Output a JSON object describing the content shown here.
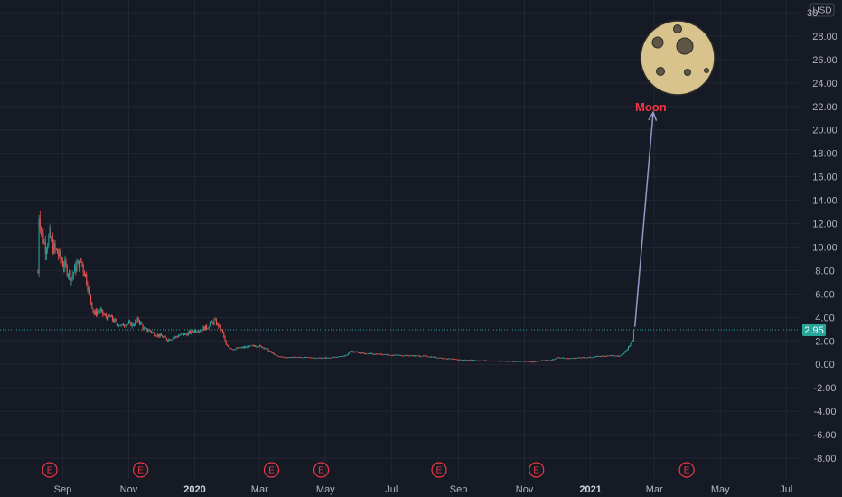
{
  "chart_data": {
    "type": "candlestick",
    "currency": "USD",
    "y_axis": {
      "ticks": [
        "30.00",
        "28.00",
        "26.00",
        "24.00",
        "22.00",
        "20.00",
        "18.00",
        "16.00",
        "14.00",
        "12.00",
        "10.00",
        "8.00",
        "6.00",
        "4.00",
        "2.00",
        "0.00",
        "-2.00",
        "-4.00",
        "-6.00",
        "-8.00"
      ],
      "range": [
        -9,
        30.5
      ]
    },
    "x_axis": {
      "ticks": [
        {
          "label": "Sep",
          "date": "2019-09-01",
          "bold": false
        },
        {
          "label": "Nov",
          "date": "2019-11-01",
          "bold": false
        },
        {
          "label": "2020",
          "date": "2020-01-01",
          "bold": true
        },
        {
          "label": "Mar",
          "date": "2020-03-01",
          "bold": false
        },
        {
          "label": "May",
          "date": "2020-05-01",
          "bold": false
        },
        {
          "label": "Jul",
          "date": "2020-07-01",
          "bold": false
        },
        {
          "label": "Sep",
          "date": "2020-09-01",
          "bold": false
        },
        {
          "label": "Nov",
          "date": "2020-11-01",
          "bold": false
        },
        {
          "label": "2021",
          "date": "2021-01-01",
          "bold": true
        },
        {
          "label": "Mar",
          "date": "2021-03-01",
          "bold": false
        },
        {
          "label": "May",
          "date": "2021-05-01",
          "bold": false
        },
        {
          "label": "Jul",
          "date": "2021-07-01",
          "bold": false
        }
      ],
      "range": [
        "2019-07-05",
        "2021-07-15"
      ]
    },
    "last_price": 2.95,
    "last_price_label": "2.95",
    "earnings_label": "E",
    "earnings_dates": [
      "2019-08-20",
      "2019-11-12",
      "2020-03-12",
      "2020-04-27",
      "2020-08-14",
      "2020-11-12",
      "2021-03-31"
    ],
    "annotation": {
      "label": "Moon",
      "arrow_from": {
        "date": "2021-02-11",
        "value": 3.2
      },
      "arrow_to": {
        "date": "2021-02-28",
        "value": 21.5
      }
    },
    "price_path": [
      [
        "2019-08-09",
        7.8
      ],
      [
        "2019-08-10",
        12.8
      ],
      [
        "2019-08-13",
        11.0
      ],
      [
        "2019-08-16",
        10.0
      ],
      [
        "2019-08-20",
        11.0
      ],
      [
        "2019-08-23",
        10.0
      ],
      [
        "2019-08-27",
        9.5
      ],
      [
        "2019-08-30",
        9.0
      ],
      [
        "2019-09-04",
        8.2
      ],
      [
        "2019-09-09",
        7.4
      ],
      [
        "2019-09-13",
        8.3
      ],
      [
        "2019-09-18",
        8.8
      ],
      [
        "2019-09-22",
        7.6
      ],
      [
        "2019-09-26",
        5.8
      ],
      [
        "2019-09-30",
        4.3
      ],
      [
        "2019-10-05",
        4.6
      ],
      [
        "2019-10-10",
        4.1
      ],
      [
        "2019-10-15",
        4.0
      ],
      [
        "2019-10-20",
        3.6
      ],
      [
        "2019-10-25",
        3.3
      ],
      [
        "2019-10-30",
        3.5
      ],
      [
        "2019-11-05",
        3.4
      ],
      [
        "2019-11-10",
        3.8
      ],
      [
        "2019-11-15",
        3.0
      ],
      [
        "2019-11-20",
        2.9
      ],
      [
        "2019-11-25",
        2.6
      ],
      [
        "2019-12-01",
        2.4
      ],
      [
        "2019-12-07",
        2.1
      ],
      [
        "2019-12-13",
        2.3
      ],
      [
        "2019-12-19",
        2.5
      ],
      [
        "2019-12-25",
        2.6
      ],
      [
        "2020-01-01",
        2.9
      ],
      [
        "2020-01-07",
        3.0
      ],
      [
        "2020-01-13",
        3.2
      ],
      [
        "2020-01-19",
        3.7
      ],
      [
        "2020-01-23",
        3.3
      ],
      [
        "2020-01-27",
        2.7
      ],
      [
        "2020-01-30",
        1.6
      ],
      [
        "2020-02-05",
        1.3
      ],
      [
        "2020-02-12",
        1.4
      ],
      [
        "2020-02-20",
        1.5
      ],
      [
        "2020-02-28",
        1.6
      ],
      [
        "2020-03-06",
        1.4
      ],
      [
        "2020-03-12",
        1.0
      ],
      [
        "2020-03-17",
        0.7
      ],
      [
        "2020-03-24",
        0.6
      ],
      [
        "2020-04-01",
        0.6
      ],
      [
        "2020-04-10",
        0.6
      ],
      [
        "2020-04-20",
        0.55
      ],
      [
        "2020-05-01",
        0.55
      ],
      [
        "2020-05-10",
        0.6
      ],
      [
        "2020-05-20",
        0.75
      ],
      [
        "2020-05-24",
        1.1
      ],
      [
        "2020-06-01",
        1.0
      ],
      [
        "2020-06-10",
        0.9
      ],
      [
        "2020-06-20",
        0.85
      ],
      [
        "2020-07-01",
        0.8
      ],
      [
        "2020-07-15",
        0.75
      ],
      [
        "2020-08-01",
        0.7
      ],
      [
        "2020-08-15",
        0.55
      ],
      [
        "2020-09-01",
        0.4
      ],
      [
        "2020-09-15",
        0.35
      ],
      [
        "2020-10-01",
        0.3
      ],
      [
        "2020-10-15",
        0.28
      ],
      [
        "2020-11-01",
        0.25
      ],
      [
        "2020-11-08",
        0.22
      ],
      [
        "2020-11-15",
        0.3
      ],
      [
        "2020-11-25",
        0.35
      ],
      [
        "2020-12-02",
        0.6
      ],
      [
        "2020-12-10",
        0.5
      ],
      [
        "2020-12-20",
        0.55
      ],
      [
        "2021-01-01",
        0.6
      ],
      [
        "2021-01-10",
        0.7
      ],
      [
        "2021-01-20",
        0.75
      ],
      [
        "2021-01-28",
        0.7
      ],
      [
        "2021-02-02",
        1.1
      ],
      [
        "2021-02-06",
        1.6
      ],
      [
        "2021-02-09",
        2.0
      ],
      [
        "2021-02-10",
        2.95
      ]
    ]
  }
}
